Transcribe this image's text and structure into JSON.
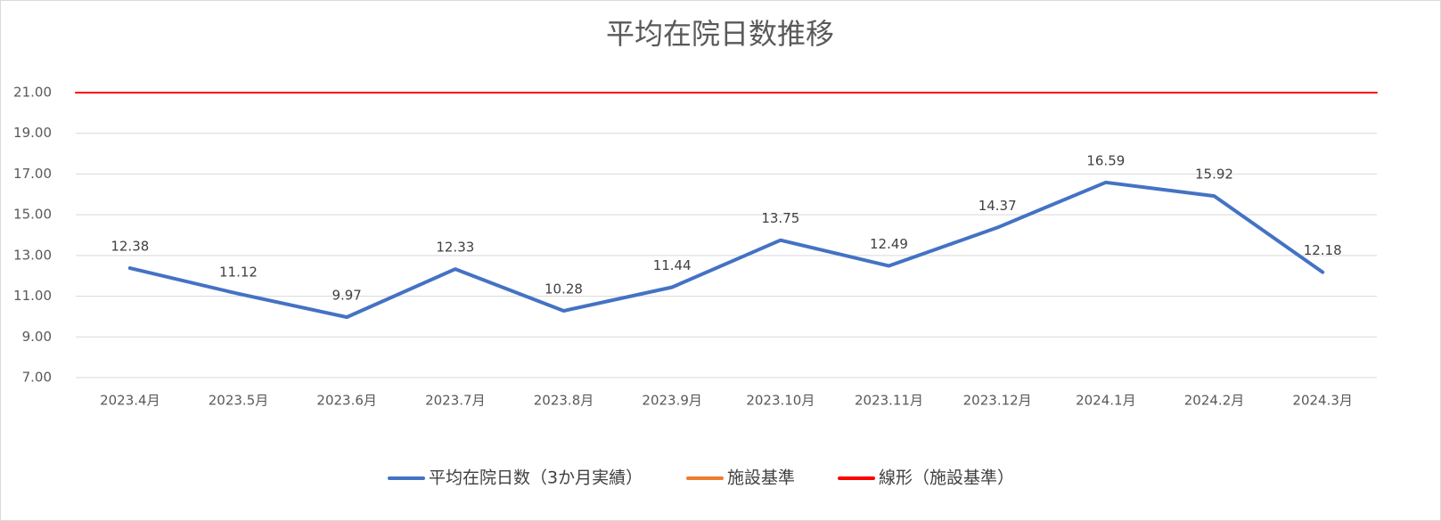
{
  "chart_data": {
    "type": "line",
    "title": "平均在院日数推移",
    "categories": [
      "2023.4月",
      "2023.5月",
      "2023.6月",
      "2023.7月",
      "2023.8月",
      "2023.9月",
      "2023.10月",
      "2023.11月",
      "2023.12月",
      "2024.1月",
      "2024.2月",
      "2024.3月"
    ],
    "series": [
      {
        "name": "平均在院日数（3か月実績）",
        "color": "#4472c4",
        "values": [
          12.38,
          11.12,
          9.97,
          12.33,
          10.28,
          11.44,
          13.75,
          12.49,
          14.37,
          16.59,
          15.92,
          12.18
        ]
      },
      {
        "name": "施設基準",
        "color": "#ed7d31",
        "values": [
          21,
          21,
          21,
          21,
          21,
          21,
          21,
          21,
          21,
          21,
          21,
          21
        ]
      },
      {
        "name": "線形（施設基準）",
        "color": "#ff0000",
        "values": [
          21,
          21,
          21,
          21,
          21,
          21,
          21,
          21,
          21,
          21,
          21,
          21
        ]
      }
    ],
    "ylim": [
      7,
      21
    ],
    "yticks": [
      {
        "value": 7,
        "label": "7.00"
      },
      {
        "value": 9,
        "label": "9.00"
      },
      {
        "value": 11,
        "label": "11.00"
      },
      {
        "value": 13,
        "label": "13.00"
      },
      {
        "value": 15,
        "label": "15.00"
      },
      {
        "value": 17,
        "label": "17.00"
      },
      {
        "value": 19,
        "label": "19.00"
      },
      {
        "value": 21,
        "label": "21.00"
      }
    ],
    "grid": true,
    "legend": "bottom"
  }
}
